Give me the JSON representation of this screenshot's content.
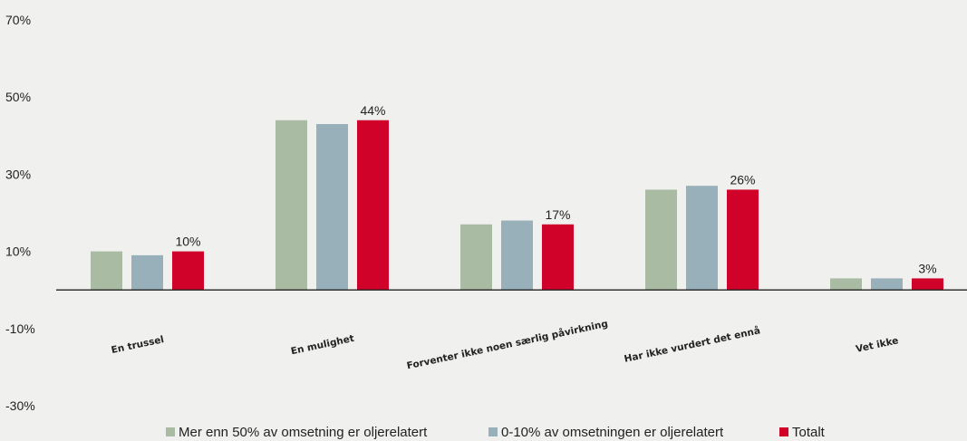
{
  "chart_data": {
    "type": "bar",
    "categories": [
      "En trussel",
      "En mulighet",
      "Forventer ikke noen særlig påvirkning",
      "Har ikke vurdert det ennå",
      "Vet ikke"
    ],
    "series": [
      {
        "name": "Mer enn 50% av omsetning er oljerelatert",
        "color": "#a9bba2",
        "values": [
          10,
          44,
          17,
          26,
          3
        ]
      },
      {
        "name": "0-10% av omsetningen er oljerelatert",
        "color": "#98b0ba",
        "values": [
          9,
          43,
          18,
          27,
          3
        ]
      },
      {
        "name": "Totalt",
        "color": "#d0022a",
        "values": [
          10,
          44,
          17,
          26,
          3
        ]
      }
    ],
    "data_labels": [
      "10%",
      "44%",
      "17%",
      "26%",
      "3%"
    ],
    "data_label_series": "Totalt",
    "yticks": [
      "70%",
      "50%",
      "30%",
      "10%",
      "-10%",
      "-30%"
    ],
    "ylim": [
      -30,
      70
    ],
    "title": "",
    "xlabel": "",
    "ylabel": "",
    "grid": false,
    "legend_position": "bottom"
  }
}
